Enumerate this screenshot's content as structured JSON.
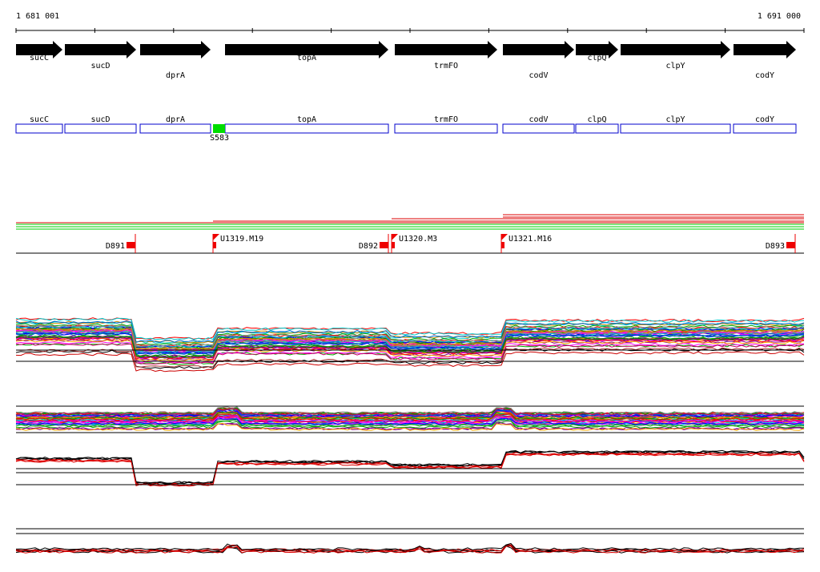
{
  "header": {
    "start": "1 681 001",
    "end": "1 691 000"
  },
  "genes": [
    "sucC",
    "sucD",
    "dprA",
    "topA",
    "trmFO",
    "codV",
    "clpQ",
    "clpY",
    "codY"
  ],
  "boxes": [
    "sucC",
    "sucD",
    "dprA",
    "topA",
    "trmFO",
    "codV",
    "clpQ",
    "clpY",
    "codY"
  ],
  "site": "S583",
  "markers": [
    "D891",
    "U1319.M19",
    "D892",
    "U1320.M3",
    "U1321.M16",
    "D893"
  ]
}
